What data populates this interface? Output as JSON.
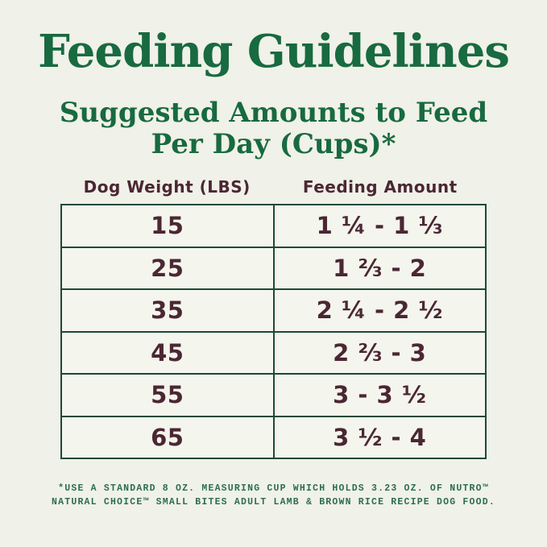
{
  "page": {
    "background_color": "#f0f1e8",
    "accent_green": "#186a40",
    "border_green": "#1b4a36",
    "text_maroon": "#4b2733",
    "footnote_green": "#2c6e4e"
  },
  "header": {
    "title": "Feeding Guidelines",
    "subtitle_lines": [
      "Suggested Amounts to Feed",
      "Per Day (Cups)*"
    ]
  },
  "table": {
    "columns": [
      "Dog Weight (LBS)",
      "Feeding Amount"
    ],
    "rows": [
      {
        "weight": "15",
        "amount": "1 ¼ - 1 ⅓"
      },
      {
        "weight": "25",
        "amount": "1 ⅔ - 2"
      },
      {
        "weight": "35",
        "amount": "2 ¼ - 2 ½"
      },
      {
        "weight": "45",
        "amount": "2 ⅔ - 3"
      },
      {
        "weight": "55",
        "amount": "3 - 3 ½"
      },
      {
        "weight": "65",
        "amount": "3 ½ - 4"
      }
    ]
  },
  "footnote": {
    "lines": [
      "*USE A STANDARD 8 OZ. MEASURING CUP WHICH HOLDS 3.23 OZ. OF NUTRO™",
      "NATURAL CHOICE™ SMALL BITES ADULT LAMB & BROWN RICE RECIPE DOG FOOD."
    ]
  }
}
